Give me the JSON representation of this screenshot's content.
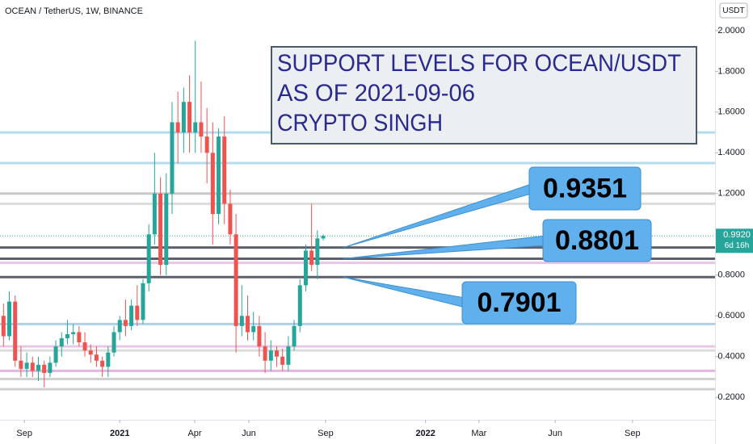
{
  "chart_data": {
    "type": "candlestick",
    "title": "OCEAN / TetherUS, 1W, BINANCE",
    "unit": "USDT",
    "ylim": [
      0.09,
      2.15
    ],
    "yticks": [
      {
        "value": 2.0,
        "label": "2.0000"
      },
      {
        "value": 1.8,
        "label": "1.8000"
      },
      {
        "value": 1.6,
        "label": "1.6000"
      },
      {
        "value": 1.4,
        "label": "1.4000"
      },
      {
        "value": 1.2,
        "label": "1.2000"
      },
      {
        "value": 0.8,
        "label": "0.8000"
      },
      {
        "value": 0.6,
        "label": "0.6000"
      },
      {
        "value": 0.4,
        "label": "0.4000"
      },
      {
        "value": 0.2,
        "label": "0.2000"
      }
    ],
    "xlim": [
      -0.6,
      122.4
    ],
    "xticks": [
      {
        "value": 3.6,
        "label": "Sep"
      },
      {
        "value": 20,
        "label": "2021"
      },
      {
        "value": 32.9,
        "label": "Apr"
      },
      {
        "value": 42.2,
        "label": "Jun"
      },
      {
        "value": 55.4,
        "label": "Sep"
      },
      {
        "value": 72.6,
        "label": "2022"
      },
      {
        "value": 81.8,
        "label": "Mar"
      },
      {
        "value": 94.9,
        "label": "Jun"
      },
      {
        "value": 108.2,
        "label": "Sep"
      }
    ],
    "up_color": "#26a69a",
    "down_color": "#ef5350",
    "open": [
      0.6,
      0.5,
      0.67,
      0.38,
      0.34,
      0.37,
      0.33,
      0.36,
      0.32,
      0.37,
      0.45,
      0.49,
      0.51,
      0.52,
      0.47,
      0.43,
      0.41,
      0.38,
      0.35,
      0.42,
      0.52,
      0.58,
      0.55,
      0.65,
      0.58,
      0.76,
      1.0,
      1.2,
      0.85,
      1.2,
      1.55,
      1.5,
      1.65,
      1.5,
      1.55,
      1.48,
      1.4,
      1.1,
      1.48,
      1.15,
      1.0,
      0.55,
      0.6,
      0.52,
      0.55,
      0.45,
      0.38,
      0.43,
      0.4,
      0.36,
      0.45,
      0.55,
      0.75,
      0.92,
      0.85,
      0.98
    ],
    "high": [
      0.66,
      0.72,
      0.7,
      0.45,
      0.42,
      0.4,
      0.4,
      0.38,
      0.4,
      0.48,
      0.52,
      0.58,
      0.56,
      0.55,
      0.52,
      0.46,
      0.45,
      0.4,
      0.45,
      0.55,
      0.6,
      0.68,
      0.68,
      0.75,
      0.78,
      1.05,
      1.4,
      1.28,
      1.3,
      1.65,
      1.7,
      1.72,
      1.78,
      1.95,
      1.75,
      1.62,
      1.55,
      1.52,
      1.58,
      1.22,
      1.1,
      0.75,
      0.7,
      0.62,
      0.6,
      0.52,
      0.48,
      0.45,
      0.44,
      0.5,
      0.58,
      0.78,
      0.95,
      1.15,
      1.02,
      1.0
    ],
    "low": [
      0.45,
      0.48,
      0.35,
      0.3,
      0.3,
      0.3,
      0.28,
      0.25,
      0.3,
      0.35,
      0.4,
      0.46,
      0.46,
      0.45,
      0.4,
      0.37,
      0.35,
      0.3,
      0.3,
      0.4,
      0.48,
      0.5,
      0.53,
      0.55,
      0.56,
      0.72,
      0.95,
      0.8,
      0.8,
      1.1,
      1.35,
      1.4,
      1.4,
      1.4,
      1.4,
      1.25,
      0.95,
      1.05,
      1.05,
      0.95,
      0.42,
      0.5,
      0.48,
      0.48,
      0.4,
      0.32,
      0.33,
      0.35,
      0.33,
      0.33,
      0.43,
      0.52,
      0.72,
      0.82,
      0.78,
      0.97
    ],
    "close": [
      0.5,
      0.67,
      0.38,
      0.34,
      0.37,
      0.33,
      0.36,
      0.32,
      0.37,
      0.45,
      0.49,
      0.51,
      0.52,
      0.47,
      0.43,
      0.41,
      0.38,
      0.35,
      0.42,
      0.52,
      0.58,
      0.55,
      0.65,
      0.58,
      0.76,
      1.0,
      1.2,
      0.85,
      1.2,
      1.55,
      1.5,
      1.65,
      1.5,
      1.55,
      1.48,
      1.4,
      1.1,
      1.48,
      1.15,
      1.0,
      0.55,
      0.6,
      0.52,
      0.55,
      0.45,
      0.38,
      0.43,
      0.4,
      0.36,
      0.45,
      0.55,
      0.75,
      0.92,
      0.85,
      0.98,
      0.992
    ],
    "last_price": {
      "value": 0.992,
      "label": "0.9920"
    },
    "countdown": "6d 16h",
    "levels": [
      {
        "value": 1.5,
        "color": "#b3dcec"
      },
      {
        "value": 1.35,
        "color": "#b3dcec"
      },
      {
        "value": 1.2,
        "color": "#c8c8c8"
      },
      {
        "value": 1.15,
        "color": "#dcdcdc"
      },
      {
        "value": 0.86,
        "color": "#e9c6e6"
      },
      {
        "value": 0.56,
        "color": "#a8d3f0"
      },
      {
        "value": 0.45,
        "color": "#e9c6e6"
      },
      {
        "value": 0.43,
        "color": "#dcdcdc"
      },
      {
        "value": 0.33,
        "color": "#e2b7df"
      },
      {
        "value": 0.29,
        "color": "#d0d0d0"
      },
      {
        "value": 0.24,
        "color": "#d0d0d0"
      }
    ],
    "callouts": [
      0.9351,
      0.8801,
      0.7901
    ],
    "annotation": [
      "SUPPORT LEVELS FOR OCEAN/USDT",
      "AS OF 2021-09-06",
      "CRYPTO SINGH"
    ]
  }
}
